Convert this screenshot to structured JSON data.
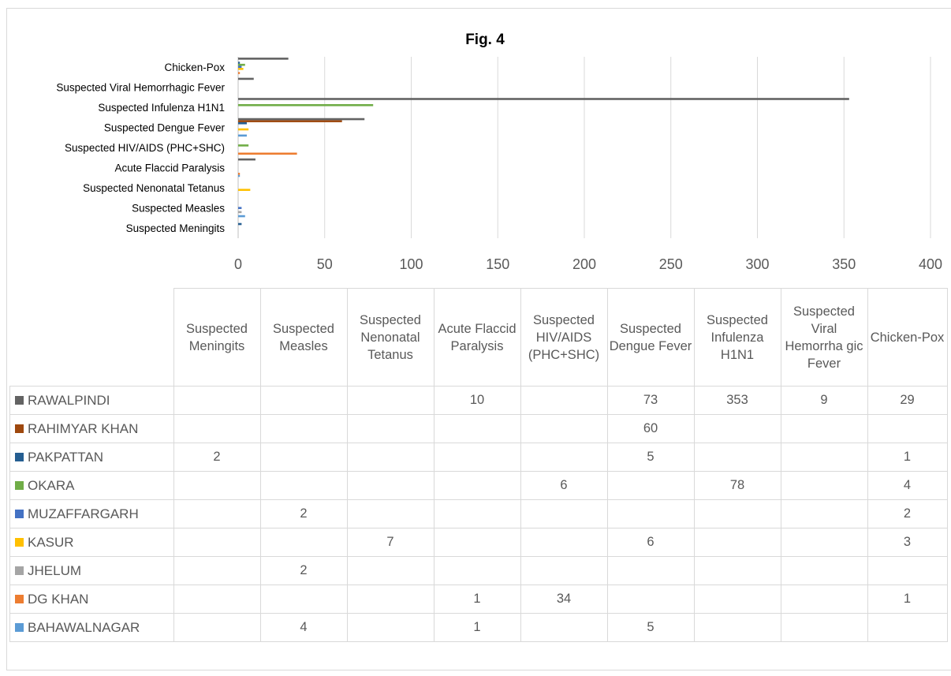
{
  "chart_data": {
    "type": "bar",
    "orientation": "horizontal",
    "title": "Fig. 4",
    "xlim": [
      0,
      400
    ],
    "xticks": [
      "0",
      "50",
      "100",
      "150",
      "200",
      "250",
      "300",
      "350",
      "400"
    ],
    "grid": true,
    "legend": "data table",
    "categories": [
      "Suspected Meningits",
      "Suspected Measles",
      "Suspected Nenonatal Tetanus",
      "Acute Flaccid Paralysis",
      "Suspected  HIV/AIDS (PHC+SHC)",
      "Suspected Dengue Fever",
      "Suspected Infulenza H1N1",
      "Suspected Viral Hemorrhagic Fever",
      "Chicken-Pox"
    ],
    "table_headers": [
      "Suspected Meningits",
      "Suspected Measles",
      "Suspected Nenonatal Tetanus",
      "Acute Flaccid Paralysis",
      "Suspected HIV/AIDS (PHC+SHC)",
      "Suspected Dengue Fever",
      "Suspected Infulenza H1N1",
      "Suspected Viral Hemorrha gic Fever",
      "Chicken-Pox"
    ],
    "series": [
      {
        "name": "BAHAWALNAGAR",
        "color": "#5B9BD5",
        "values": [
          null,
          4,
          null,
          1,
          null,
          5,
          null,
          null,
          null
        ]
      },
      {
        "name": "DG KHAN",
        "color": "#ED7D31",
        "values": [
          null,
          null,
          null,
          1,
          34,
          null,
          null,
          null,
          1
        ]
      },
      {
        "name": "JHELUM",
        "color": "#A5A5A5",
        "values": [
          null,
          2,
          null,
          null,
          null,
          null,
          null,
          null,
          null
        ]
      },
      {
        "name": "KASUR",
        "color": "#FFC000",
        "values": [
          null,
          null,
          7,
          null,
          null,
          6,
          null,
          null,
          3
        ]
      },
      {
        "name": "MUZAFFARGARH",
        "color": "#4472C4",
        "values": [
          null,
          2,
          null,
          null,
          null,
          null,
          null,
          null,
          2
        ]
      },
      {
        "name": "OKARA",
        "color": "#70AD47",
        "values": [
          null,
          null,
          null,
          null,
          6,
          null,
          78,
          null,
          4
        ]
      },
      {
        "name": "PAKPATTAN",
        "color": "#255E91",
        "values": [
          2,
          null,
          null,
          null,
          null,
          5,
          null,
          null,
          1
        ]
      },
      {
        "name": "RAHIMYAR KHAN",
        "color": "#9E480E",
        "values": [
          null,
          null,
          null,
          null,
          null,
          60,
          null,
          null,
          null
        ]
      },
      {
        "name": "RAWALPINDI",
        "color": "#636363",
        "values": [
          null,
          null,
          null,
          10,
          null,
          73,
          353,
          9,
          29
        ]
      }
    ]
  }
}
